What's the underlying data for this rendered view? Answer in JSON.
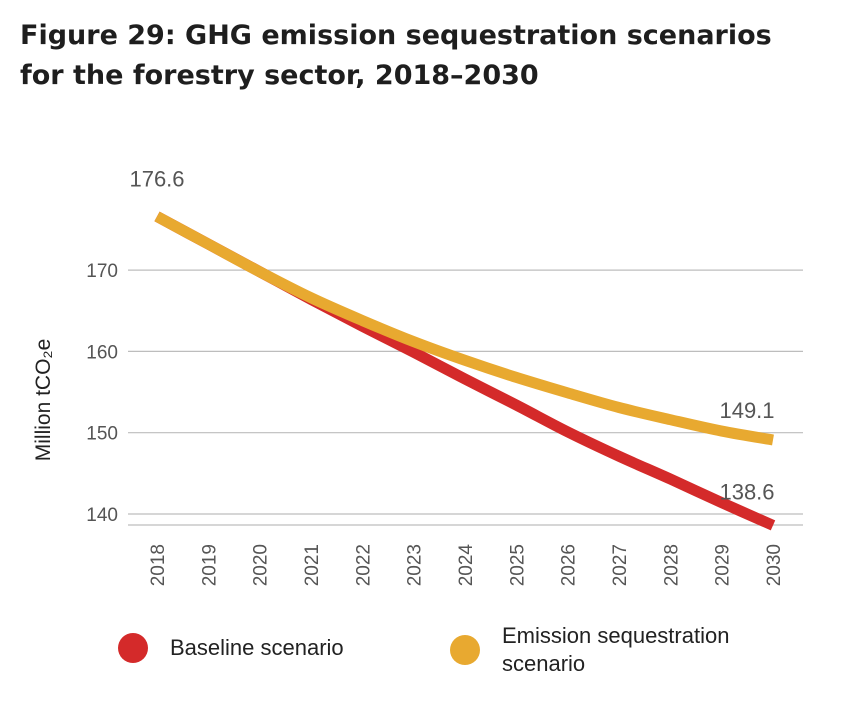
{
  "title": "Figure 29: GHG emission sequestration scenarios for the forestry sector, 2018–2030",
  "chart_data": {
    "type": "line",
    "title": "",
    "xlabel": "",
    "ylabel": "Million tCO₂e",
    "ylim": [
      138,
      180
    ],
    "yticks": [
      140,
      150,
      160,
      170
    ],
    "x": [
      2018,
      2019,
      2020,
      2021,
      2022,
      2023,
      2024,
      2025,
      2026,
      2027,
      2028,
      2029,
      2030
    ],
    "grid": true,
    "legend_position": "bottom",
    "series": [
      {
        "name": "Baseline scenario",
        "color": "#d42a2a",
        "values": [
          176.6,
          173.2,
          169.8,
          166.4,
          163.1,
          159.9,
          156.6,
          153.4,
          150.1,
          147.1,
          144.3,
          141.4,
          138.6
        ]
      },
      {
        "name": "Emission sequestration scenario",
        "color": "#e8a930",
        "values": [
          176.6,
          173.2,
          169.8,
          166.6,
          163.8,
          161.2,
          158.9,
          156.8,
          154.9,
          153.1,
          151.6,
          150.2,
          149.1
        ]
      }
    ],
    "annotations": [
      {
        "text": "176.6",
        "series": 1,
        "index": 0
      },
      {
        "text": "149.1",
        "series": 1,
        "index": 12
      },
      {
        "text": "138.6",
        "series": 0,
        "index": 12
      }
    ]
  }
}
